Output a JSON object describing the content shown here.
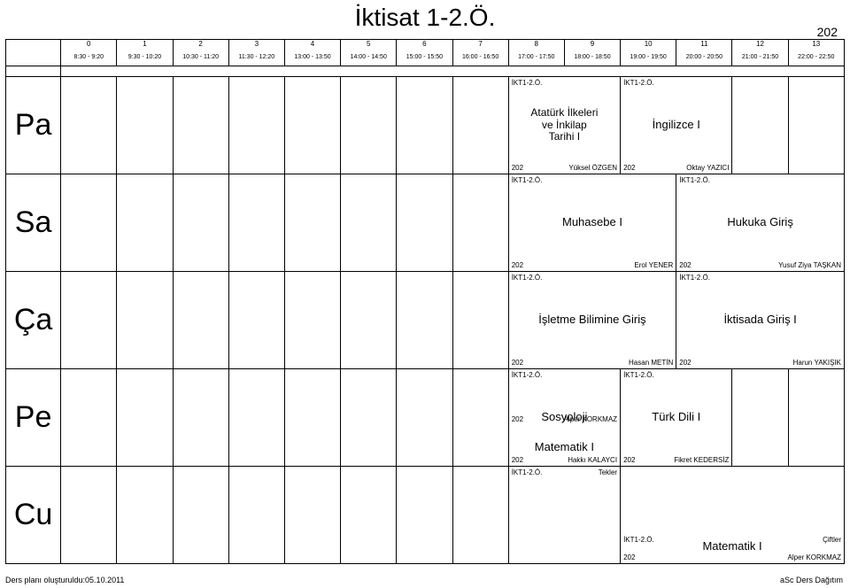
{
  "title": "İktisat 1-2.Ö.",
  "room_top": "202",
  "columns": {
    "indices": [
      "0",
      "1",
      "2",
      "3",
      "4",
      "5",
      "6",
      "7",
      "8",
      "9",
      "10",
      "11",
      "12",
      "13"
    ],
    "times": [
      "8:30 - 9:20",
      "9:30 - 10:20",
      "10:30 - 11:20",
      "11:30 - 12:20",
      "13:00 - 13:50",
      "14:00 - 14:50",
      "15:00 - 15:50",
      "16:00 - 16:50",
      "17:00 - 17:50",
      "18:00 - 18:50",
      "19:00 - 19:50",
      "20:00 - 20:50",
      "21:00 - 21:50",
      "22:00 - 22:50"
    ]
  },
  "days": [
    "Pa",
    "Sa",
    "Ça",
    "Pe",
    "Cu"
  ],
  "cells": {
    "pa_ataturk": {
      "code": "İKT1-2.Ö.",
      "title_l1": "Atatürk İlkeleri",
      "title_l2": "ve İnkilap",
      "title_l3": "Tarihi I",
      "room": "202",
      "teacher": "Yüksel ÖZGEN"
    },
    "pa_ing": {
      "code": "İKT1-2.Ö.",
      "title": "İngilizce I",
      "room": "202",
      "teacher": "Oktay YAZICI"
    },
    "sa_muh": {
      "code": "İKT1-2.Ö.",
      "title": "Muhasebe I",
      "room": "202",
      "teacher": "Erol YENER"
    },
    "sa_huk": {
      "code": "İKT1-2.Ö.",
      "title": "Hukuka Giriş",
      "room": "202",
      "teacher": "Yusuf Ziya TAŞKAN"
    },
    "ca_isl": {
      "code": "İKT1-2.Ö.",
      "title": "İşletme Bilimine Giriş",
      "room": "202",
      "teacher": "Hasan METİN"
    },
    "ca_ikt": {
      "code": "İKT1-2.Ö.",
      "title": "İktisada Giriş I",
      "room": "202",
      "teacher": "Harun YAKIŞIK"
    },
    "pe_sos": {
      "code": "İKT1-2.Ö.",
      "title": "Sosyoloji",
      "room": "202",
      "teacher": "Hakkı KALAYCI"
    },
    "pe_turk": {
      "code": "İKT1-2.Ö.",
      "title": "Türk Dili I",
      "room": "202",
      "teacher": "Fikret KEDERSİZ"
    },
    "cu_mat1": {
      "code": "İKT1-2.Ö.",
      "note": "Tekler",
      "title": "Matematik I",
      "room": "202",
      "teacher": "Alper KORKMAZ"
    },
    "cu_mat2": {
      "code": "İKT1-2.Ö.",
      "note": "Çiftler",
      "title": "Matematik I",
      "room": "202",
      "teacher": "Alper KORKMAZ"
    }
  },
  "footer_left": "Ders planı oluşturuldu:05.10.2011",
  "footer_right": "aSc Ders Dağıtım"
}
